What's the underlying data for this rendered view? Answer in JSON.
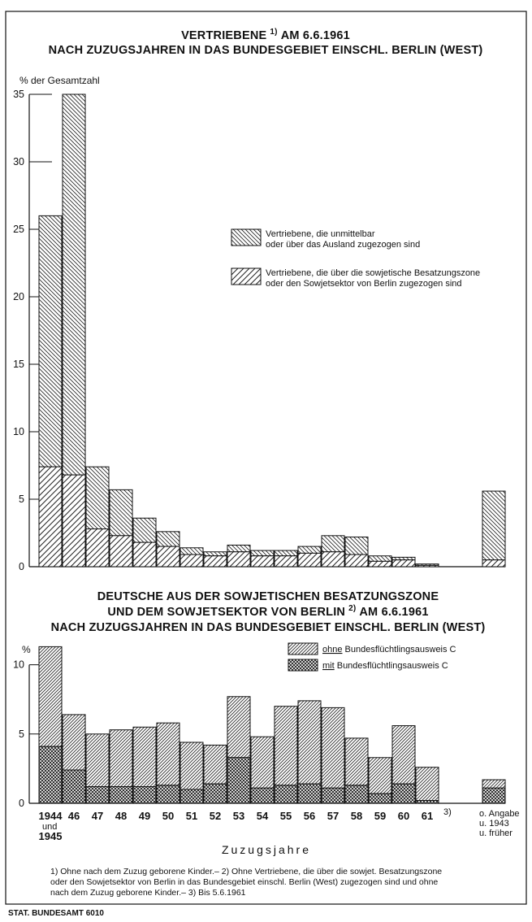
{
  "chart_data": [
    {
      "type": "bar",
      "stacked": true,
      "title": "VERTRIEBENE 1) AM 6.6.1961",
      "title_line2": "NACH ZUZUGSJAHREN IN DAS BUNDESGEBIET EINSCHL. BERLIN (WEST)",
      "ylabel": "% der Gesamtzahl",
      "ylim": [
        0,
        35
      ],
      "yticks": [
        0,
        5,
        10,
        15,
        20,
        25,
        30,
        35
      ],
      "categories": [
        "1944 und 1945",
        "46",
        "47",
        "48",
        "49",
        "50",
        "51",
        "52",
        "53",
        "54",
        "55",
        "56",
        "57",
        "58",
        "59",
        "60",
        "61 3)",
        "o. Angabe u. 1943 u. früher"
      ],
      "series": [
        {
          "name": "Vertriebene, die über die sowjetische Besatzungszone oder den Sowjetsektor von Berlin zugezogen sind",
          "pattern": "diag-left",
          "values": [
            7.4,
            6.8,
            2.8,
            2.3,
            1.8,
            1.5,
            0.9,
            0.8,
            1.1,
            0.8,
            0.8,
            1.0,
            1.1,
            0.9,
            0.4,
            0.5,
            0.1,
            0.5
          ]
        },
        {
          "name": "Vertriebene, die unmittelbar oder über das Ausland zugezogen sind",
          "pattern": "diag-right",
          "values": [
            18.6,
            28.2,
            4.6,
            3.4,
            1.8,
            1.1,
            0.5,
            0.3,
            0.5,
            0.4,
            0.4,
            0.5,
            1.2,
            1.3,
            0.4,
            0.2,
            0.1,
            5.1
          ]
        }
      ],
      "legend": [
        "Vertriebene, die unmittelbar oder über das Ausland zugezogen sind",
        "Vertriebene, die über die sowjetische Besatzungszone oder den Sowjetsektor von Berlin zugezogen sind"
      ],
      "legend_placement": "center-right",
      "grid": false
    },
    {
      "type": "bar",
      "stacked": true,
      "title": "DEUTSCHE AUS DER SOWJETISCHEN BESATZUNGSZONE",
      "title_line2": "UND DEM SOWJETSEKTOR VON BERLIN 2) AM 6.6.1961",
      "title_line3": "NACH ZUZUGSJAHREN IN DAS BUNDESGEBIET EINSCHL. BERLIN (WEST)",
      "ylabel": "%",
      "ylim": [
        0,
        11.5
      ],
      "yticks": [
        0,
        5,
        10
      ],
      "xlabel": "Zuzugsjahre",
      "categories": [
        "1944 und 1945",
        "46",
        "47",
        "48",
        "49",
        "50",
        "51",
        "52",
        "53",
        "54",
        "55",
        "56",
        "57",
        "58",
        "59",
        "60",
        "61 3)",
        "o. Angabe u. 1943 u. früher"
      ],
      "series": [
        {
          "name": "mit Bundesflüchtlingsausweis C",
          "pattern": "cross",
          "values": [
            4.1,
            2.4,
            1.2,
            1.2,
            1.2,
            1.3,
            1.0,
            1.4,
            3.3,
            1.1,
            1.3,
            1.4,
            1.1,
            1.3,
            0.7,
            1.4,
            0.2,
            1.1
          ]
        },
        {
          "name": "ohne Bundesflüchtlingsausweis C",
          "pattern": "diag-right",
          "values": [
            7.2,
            4.0,
            3.8,
            4.1,
            4.3,
            4.5,
            3.4,
            2.8,
            4.4,
            3.7,
            5.7,
            6.0,
            5.8,
            3.4,
            2.6,
            4.2,
            2.4,
            0.6
          ]
        }
      ],
      "legend": [
        "ohne Bundesflüchtlingsausweis C",
        "mit Bundesflüchtlingsausweis C"
      ],
      "legend_placement": "top-right",
      "grid": false
    }
  ],
  "labels": {
    "cat_main": [
      "1944",
      "46",
      "47",
      "48",
      "49",
      "50",
      "51",
      "52",
      "53",
      "54",
      "55",
      "56",
      "57",
      "58",
      "59",
      "60",
      "61"
    ],
    "cat_first_sub1": "und",
    "cat_first_sub2": "1945",
    "cat_61_note": "3)",
    "cat_last": [
      "o. Angabe",
      "u. 1943",
      "u. früher"
    ],
    "legend1_a_line1": "Vertriebene, die unmittelbar",
    "legend1_a_line2": "oder über das Ausland zugezogen sind",
    "legend1_b_line1": "Vertriebene, die über die sowjetische Besatzungszone",
    "legend1_b_line2": "oder den Sowjetsektor von Berlin zugezogen sind",
    "legend2_a_emph": "ohne",
    "legend2_a_rest": " Bundesflüchtlingsausweis C",
    "legend2_b_emph": "mit",
    "legend2_b_rest": " Bundesflüchtlingsausweis C",
    "title1_prefix": "VERTRIEBENE",
    "title1_note": "1)",
    "title1_suffix": "AM 6.6.1961",
    "title2_line2_prefix": "UND DEM SOWJETSEKTOR VON BERLIN",
    "title2_line2_note": "2)",
    "title2_line2_suffix": "AM 6.6.1961"
  },
  "footnotes": {
    "line1": "1) Ohne nach dem Zuzug geborene Kinder.– 2) Ohne Vertriebene, die über die sowjet. Besatzungszone",
    "line2": "oder den Sowjetsektor von Berlin in das Bundesgebiet einschl. Berlin (West) zugezogen sind und ohne",
    "line3": "nach dem Zuzug geborene Kinder.– 3) Bis 5.6.1961"
  },
  "source": "STAT. BUNDESAMT 6010"
}
